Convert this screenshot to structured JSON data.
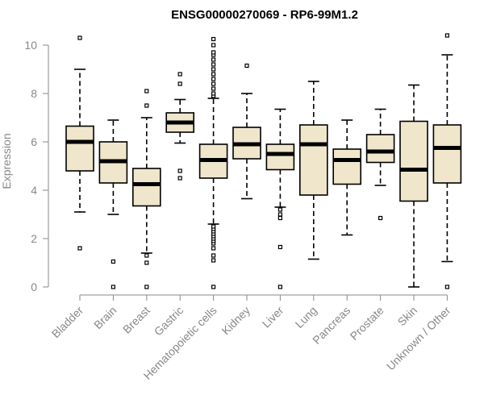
{
  "chart_data": {
    "type": "boxplot",
    "title": "ENSG00000270069 - RP6-99M1.2",
    "xlabel": "",
    "ylabel": "Expression",
    "ylim": [
      0,
      10.4
    ],
    "yticks": [
      0,
      2,
      4,
      6,
      8,
      10
    ],
    "grid": false,
    "categories": [
      "Bladder",
      "Brain",
      "Breast",
      "Gastric",
      "Hematopoietic cells",
      "Kidney",
      "Liver",
      "Lung",
      "Pancreas",
      "Prostate",
      "Skin",
      "Unknown / Other"
    ],
    "boxes": [
      {
        "name": "Bladder",
        "whisker_low": 3.1,
        "q1": 4.8,
        "median": 6.0,
        "q3": 6.65,
        "whisker_high": 9.0,
        "outliers": [
          1.6,
          10.3
        ]
      },
      {
        "name": "Brain",
        "whisker_low": 3.0,
        "q1": 4.3,
        "median": 5.2,
        "q3": 6.0,
        "whisker_high": 6.9,
        "outliers": [
          0.0,
          1.05
        ]
      },
      {
        "name": "Breast",
        "whisker_low": 1.4,
        "q1": 3.35,
        "median": 4.25,
        "q3": 4.9,
        "whisker_high": 7.0,
        "outliers": [
          0.0,
          1.0,
          1.3,
          7.5,
          8.1
        ]
      },
      {
        "name": "Gastric",
        "whisker_low": 5.95,
        "q1": 6.4,
        "median": 6.8,
        "q3": 7.2,
        "whisker_high": 7.75,
        "outliers": [
          4.5,
          4.8,
          8.4,
          8.8
        ]
      },
      {
        "name": "Hematopoietic cells",
        "whisker_low": 2.6,
        "q1": 4.5,
        "median": 5.25,
        "q3": 5.9,
        "whisker_high": 7.8,
        "outliers": [
          0.0,
          1.1,
          1.3,
          1.6,
          1.8,
          1.9,
          2.0,
          2.1,
          2.2,
          2.3,
          2.4,
          2.5,
          7.9,
          8.0,
          8.2,
          8.4,
          8.6,
          8.8,
          9.0,
          9.2,
          9.4,
          9.6,
          9.7,
          10.0,
          10.25
        ]
      },
      {
        "name": "Kidney",
        "whisker_low": 3.65,
        "q1": 5.3,
        "median": 5.9,
        "q3": 6.6,
        "whisker_high": 8.0,
        "outliers": [
          9.15
        ]
      },
      {
        "name": "Liver",
        "whisker_low": 3.3,
        "q1": 4.85,
        "median": 5.5,
        "q3": 5.9,
        "whisker_high": 7.35,
        "outliers": [
          0.0,
          1.65,
          2.85,
          3.0,
          3.2
        ]
      },
      {
        "name": "Lung",
        "whisker_low": 1.15,
        "q1": 3.8,
        "median": 5.9,
        "q3": 6.7,
        "whisker_high": 8.5,
        "outliers": []
      },
      {
        "name": "Pancreas",
        "whisker_low": 2.15,
        "q1": 4.25,
        "median": 5.25,
        "q3": 5.7,
        "whisker_high": 6.9,
        "outliers": []
      },
      {
        "name": "Prostate",
        "whisker_low": 4.2,
        "q1": 5.15,
        "median": 5.6,
        "q3": 6.3,
        "whisker_high": 7.35,
        "outliers": [
          2.85
        ]
      },
      {
        "name": "Skin",
        "whisker_low": 0.0,
        "q1": 3.55,
        "median": 4.85,
        "q3": 6.85,
        "whisker_high": 8.35,
        "outliers": []
      },
      {
        "name": "Unknown / Other",
        "whisker_low": 1.05,
        "q1": 4.3,
        "median": 5.75,
        "q3": 6.7,
        "whisker_high": 9.6,
        "outliers": [
          0.0,
          10.4
        ]
      }
    ]
  }
}
